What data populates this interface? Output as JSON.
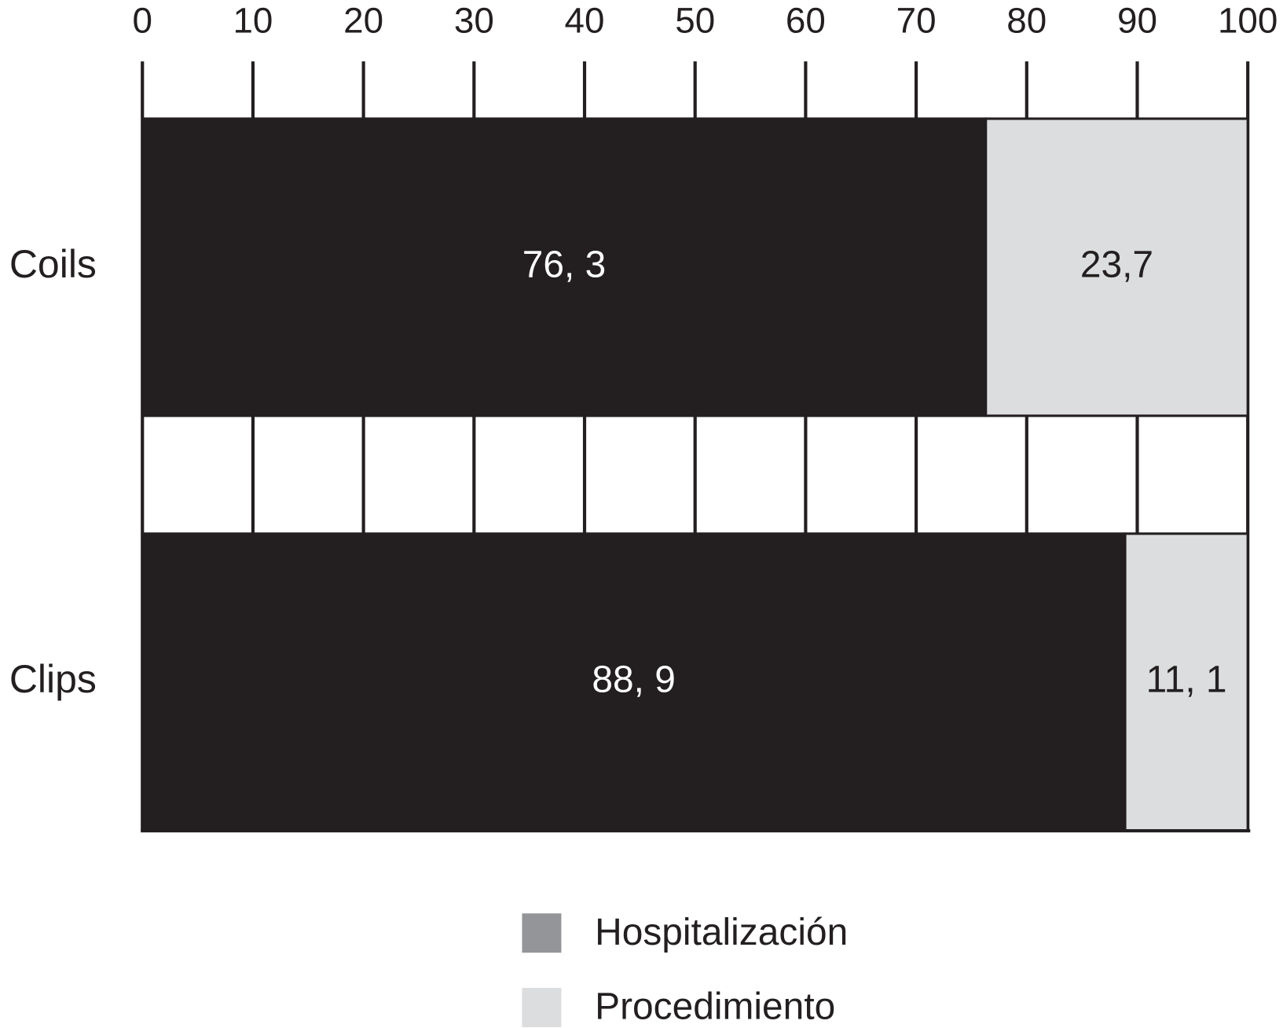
{
  "chart_data": {
    "type": "bar",
    "orientation": "horizontal",
    "stacked": true,
    "categories": [
      "Coils",
      "Clips"
    ],
    "series": [
      {
        "name": "Hospitalización",
        "color": "#231f20",
        "legend_color": "#939598",
        "values": [
          76.3,
          88.9
        ],
        "value_labels": [
          "76, 3",
          "88, 9"
        ]
      },
      {
        "name": "Procedimiento",
        "color": "#dcddde",
        "legend_color": "#dcddde",
        "values": [
          23.7,
          11.1
        ],
        "value_labels": [
          "23,7",
          "11, 1"
        ]
      }
    ],
    "xlim": [
      0,
      100
    ],
    "xticks": [
      0,
      10,
      20,
      30,
      40,
      50,
      60,
      70,
      80,
      90,
      100
    ],
    "grid": true
  }
}
